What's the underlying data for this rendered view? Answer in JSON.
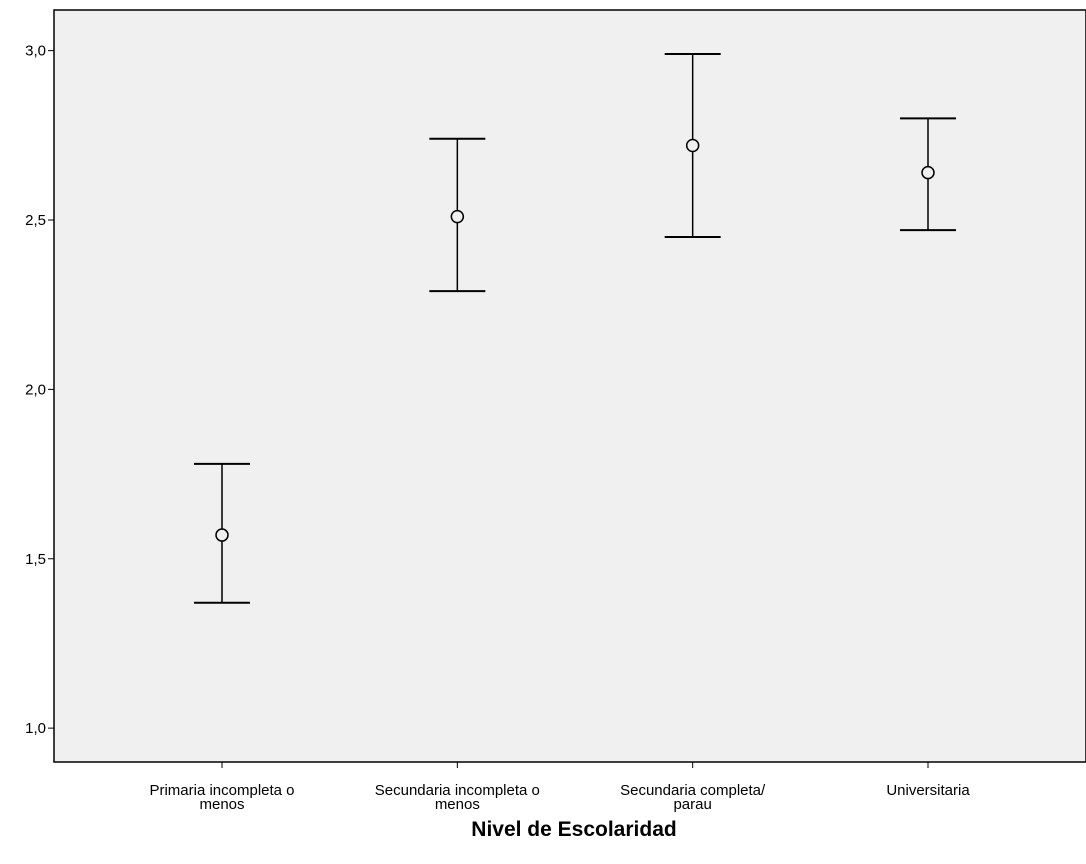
{
  "chart_data": {
    "type": "errorbar",
    "title": "",
    "xlabel": "Nivel de Escolaridad",
    "ylabel": "",
    "ylim": [
      0.9,
      3.12
    ],
    "y_ticks": [
      1.0,
      1.5,
      2.0,
      2.5,
      3.0
    ],
    "y_tick_labels": [
      "1,0",
      "1,5",
      "2,0",
      "2,5",
      "3,0"
    ],
    "categories": [
      [
        "Primaria incompleta o",
        "menos"
      ],
      [
        "Secundaria incompleta o",
        "menos"
      ],
      [
        "Secundaria completa/",
        "parau"
      ],
      [
        "Universitaria"
      ]
    ],
    "means": [
      1.57,
      2.51,
      2.72,
      2.64
    ],
    "lower": [
      1.37,
      2.29,
      2.45,
      2.47
    ],
    "upper": [
      1.78,
      2.74,
      2.99,
      2.8
    ],
    "grid": false,
    "plot_background": "#f0f0f0",
    "line_color": "#000000"
  }
}
